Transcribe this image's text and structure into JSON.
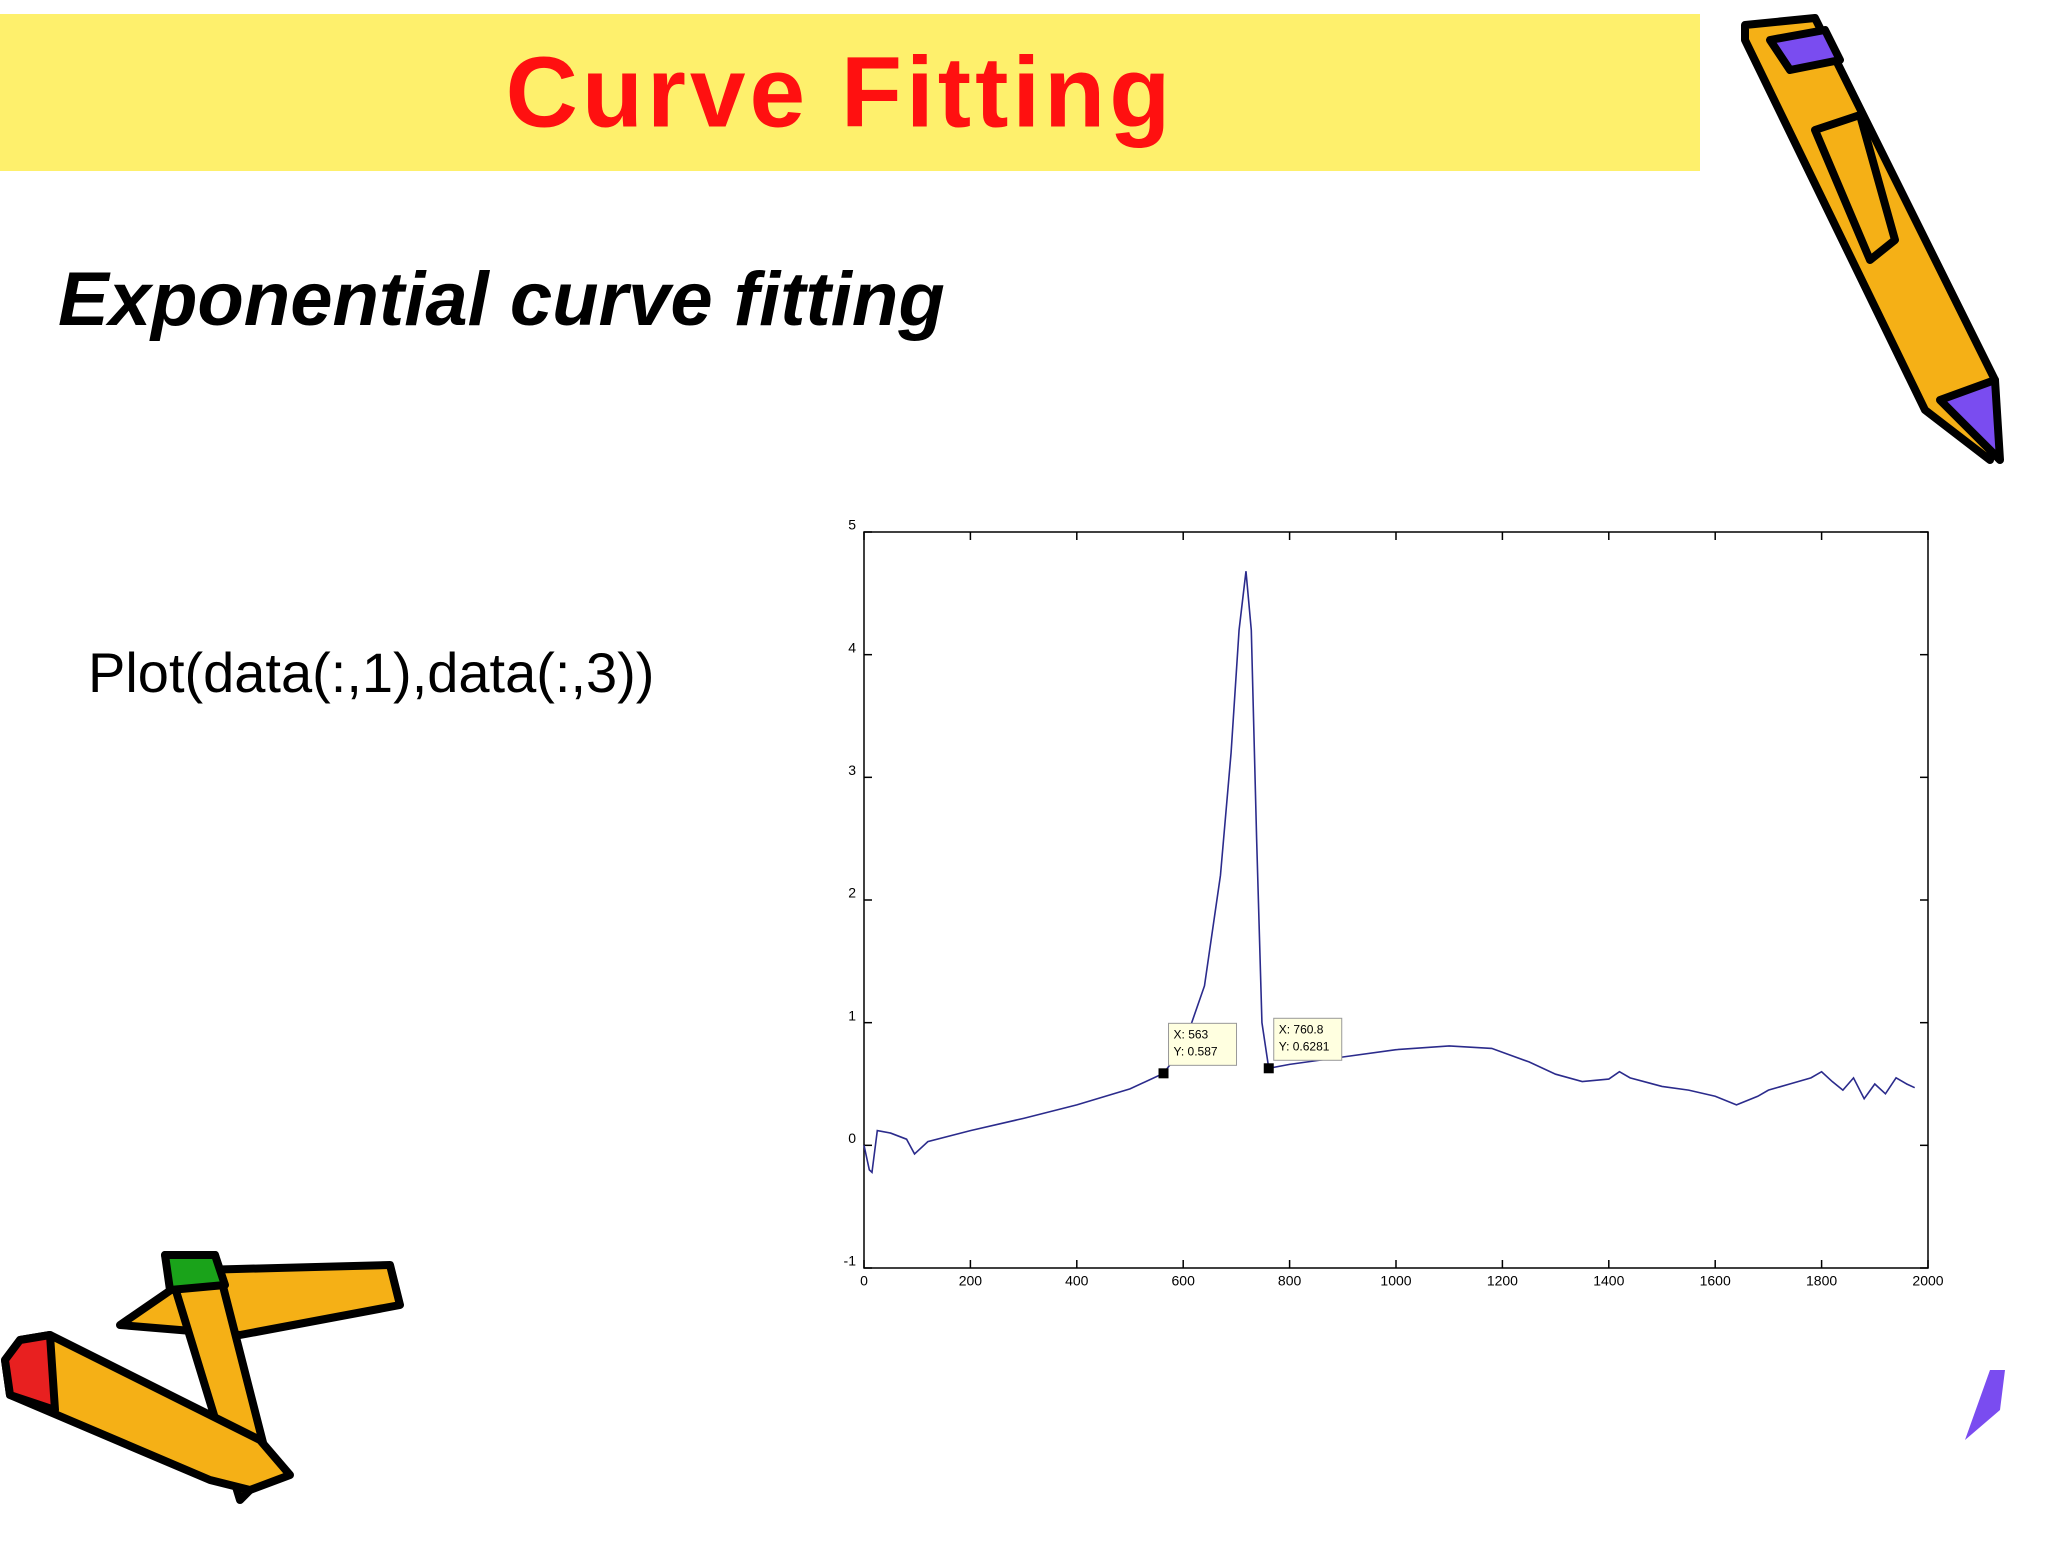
{
  "slide": {
    "title": "Curve Fitting",
    "subtitle": "Exponential curve fitting",
    "code": "Plot(data(:,1),data(:,3))"
  },
  "chart_data": {
    "type": "line",
    "series": [
      {
        "color": "#2b2b8c",
        "x": [
          0,
          10,
          15,
          25,
          50,
          80,
          95,
          120,
          200,
          300,
          400,
          500,
          563,
          600,
          640,
          670,
          690,
          705,
          718,
          728,
          738,
          748,
          760.8,
          800,
          900,
          1000,
          1100,
          1180,
          1250,
          1300,
          1350,
          1400,
          1420,
          1440,
          1500,
          1550,
          1600,
          1640,
          1680,
          1700,
          1740,
          1780,
          1800,
          1820,
          1840,
          1860,
          1880,
          1900,
          1920,
          1940,
          1960,
          1975
        ],
        "values": [
          0.0,
          -0.2,
          -0.22,
          0.12,
          0.1,
          0.05,
          -0.07,
          0.03,
          0.12,
          0.22,
          0.33,
          0.46,
          0.587,
          0.8,
          1.3,
          2.2,
          3.2,
          4.2,
          4.68,
          4.2,
          2.5,
          1.0,
          0.6281,
          0.66,
          0.72,
          0.78,
          0.81,
          0.79,
          0.68,
          0.58,
          0.52,
          0.54,
          0.6,
          0.55,
          0.48,
          0.45,
          0.4,
          0.33,
          0.4,
          0.45,
          0.5,
          0.55,
          0.6,
          0.52,
          0.45,
          0.55,
          0.38,
          0.5,
          0.42,
          0.55,
          0.5,
          0.47
        ]
      }
    ],
    "xlim": [
      0,
      2000
    ],
    "xticks": [
      0,
      200,
      400,
      600,
      800,
      1000,
      1200,
      1400,
      1600,
      1800,
      2000
    ],
    "ylim": [
      -1,
      5
    ],
    "yticks": [
      -1,
      0,
      1,
      2,
      3,
      4,
      5
    ],
    "annotations": [
      {
        "x": 563,
        "y": 0.587,
        "x_label": "X: 563",
        "y_label": "Y: 0.587"
      },
      {
        "x": 760.8,
        "y": 0.6281,
        "x_label": "X: 760.8",
        "y_label": "Y: 0.6281"
      }
    ]
  }
}
